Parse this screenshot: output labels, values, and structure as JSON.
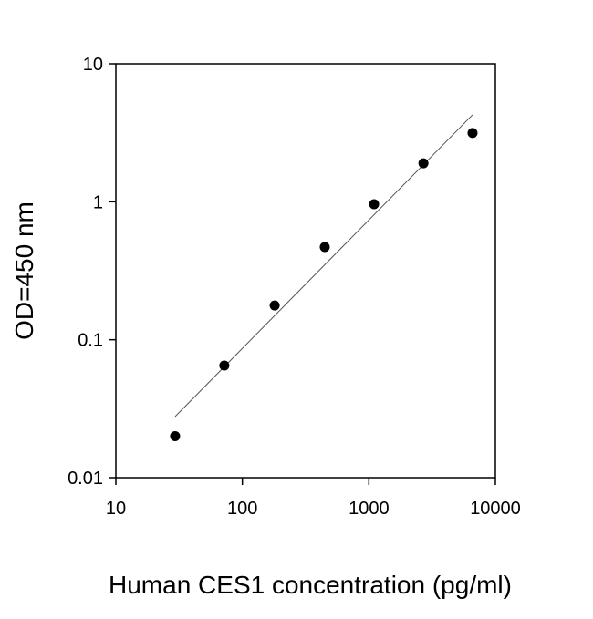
{
  "chart_data": {
    "type": "scatter",
    "x_label": "Human CES1 concentration (pg/ml)",
    "y_label": "OD=450 nm",
    "x": [
      29.4,
      72,
      180,
      448,
      1100,
      2700,
      6600
    ],
    "values": [
      0.02,
      0.065,
      0.177,
      0.47,
      0.96,
      1.9,
      3.15
    ],
    "color": "#000000",
    "fit_line": {
      "x": [
        29.4,
        6600
      ],
      "values": [
        0.0277,
        4.27
      ],
      "color": "#555555"
    },
    "xscale": "log",
    "yscale": "log",
    "xlim": [
      10,
      10000
    ],
    "ylim": [
      0.01,
      10
    ],
    "xticks": [
      10,
      100,
      1000,
      10000
    ],
    "yticks": [
      0.01,
      0.1,
      1,
      10
    ],
    "grid": false
  }
}
